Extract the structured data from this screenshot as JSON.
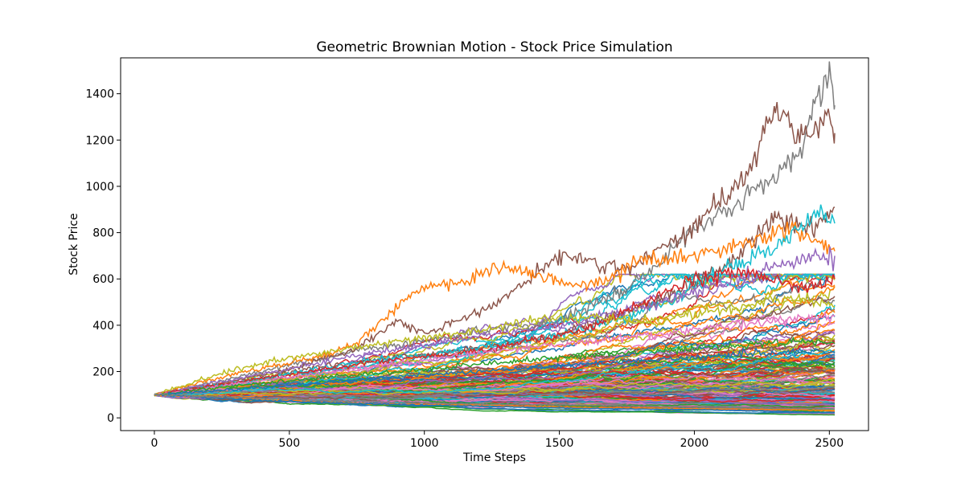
{
  "chart_data": {
    "type": "line",
    "title": "Geometric Brownian Motion - Stock Price Simulation",
    "xlabel": "Time Steps",
    "ylabel": "Stock Price",
    "xlim": [
      -125,
      2645
    ],
    "ylim": [
      -55,
      1555
    ],
    "xticks": [
      0,
      500,
      1000,
      1500,
      2000,
      2500
    ],
    "yticks": [
      0,
      200,
      400,
      600,
      800,
      1000,
      1200,
      1400
    ],
    "grid": false,
    "legend": "none",
    "n_steps": 2520,
    "initial_price": 100,
    "colors": [
      "#1f77b4",
      "#ff7f0e",
      "#2ca02c",
      "#d62728",
      "#9467bd",
      "#8c564b",
      "#e377c2",
      "#7f7f7f",
      "#bcbd22",
      "#17becf"
    ],
    "series": [
      {
        "color": "#7f7f7f",
        "x": [
          0,
          250,
          500,
          750,
          1000,
          1250,
          1500,
          1750,
          2000,
          2250,
          2380,
          2450,
          2500,
          2520
        ],
        "y": [
          100,
          160,
          230,
          290,
          330,
          380,
          420,
          560,
          800,
          1000,
          1120,
          1380,
          1470,
          1350
        ]
      },
      {
        "color": "#8c564b",
        "x": [
          0,
          250,
          500,
          750,
          900,
          1000,
          1250,
          1500,
          1750,
          2000,
          2200,
          2300,
          2400,
          2500,
          2520
        ],
        "y": [
          100,
          150,
          210,
          300,
          420,
          360,
          480,
          700,
          640,
          820,
          1050,
          1340,
          1220,
          1280,
          1230
        ]
      },
      {
        "color": "#8c564b",
        "x": [
          0,
          300,
          600,
          900,
          1200,
          1500,
          1800,
          2100,
          2300,
          2450,
          2520
        ],
        "y": [
          100,
          150,
          220,
          260,
          300,
          360,
          480,
          640,
          860,
          820,
          910
        ]
      },
      {
        "color": "#ff7f0e",
        "x": [
          0,
          300,
          600,
          750,
          900,
          1000,
          1150,
          1300,
          1400,
          1600,
          1800,
          2000,
          2200,
          2350,
          2450,
          2520
        ],
        "y": [
          100,
          190,
          260,
          320,
          480,
          560,
          590,
          660,
          620,
          560,
          680,
          700,
          760,
          820,
          760,
          720
        ]
      },
      {
        "color": "#17becf",
        "x": [
          0,
          400,
          800,
          1200,
          1600,
          1900,
          2100,
          2300,
          2450,
          2520
        ],
        "y": [
          100,
          170,
          250,
          300,
          380,
          500,
          640,
          730,
          880,
          840
        ]
      },
      {
        "color": "#9467bd",
        "x": [
          0,
          400,
          800,
          1200,
          1600,
          2000,
          2200,
          2400,
          2520
        ],
        "y": [
          100,
          190,
          280,
          350,
          420,
          540,
          620,
          690,
          700
        ]
      },
      {
        "color": "#d62728",
        "x": [
          0,
          400,
          800,
          1200,
          1600,
          2000,
          2200,
          2400,
          2520
        ],
        "y": [
          100,
          170,
          240,
          290,
          380,
          600,
          630,
          560,
          600
        ]
      },
      {
        "color": "#bcbd22",
        "x": [
          0,
          300,
          600,
          900,
          1200,
          1500,
          1800,
          2100,
          2400,
          2520
        ],
        "y": [
          100,
          210,
          280,
          330,
          380,
          440,
          420,
          470,
          520,
          480
        ]
      },
      {
        "color": "#e377c2",
        "x": [
          0,
          400,
          800,
          1200,
          1600,
          2000,
          2400,
          2520
        ],
        "y": [
          100,
          160,
          220,
          280,
          330,
          380,
          430,
          440
        ]
      },
      {
        "color": "#2ca02c",
        "x": [
          0,
          400,
          800,
          1200,
          1600,
          2000,
          2400,
          2520
        ],
        "y": [
          100,
          150,
          190,
          230,
          270,
          300,
          330,
          320
        ]
      },
      {
        "color": "#1f77b4",
        "x": [
          0,
          400,
          800,
          1200,
          1600,
          2000,
          2400,
          2520
        ],
        "y": [
          100,
          130,
          170,
          200,
          230,
          260,
          290,
          280
        ]
      },
      {
        "color": "#ff7f0e",
        "x": [
          0,
          400,
          800,
          1200,
          1600,
          2000,
          2400,
          2520
        ],
        "y": [
          100,
          80,
          60,
          55,
          45,
          40,
          35,
          30
        ]
      },
      {
        "color": "#1f77b4",
        "x": [
          0,
          400,
          800,
          1200,
          1600,
          2000,
          2400,
          2520
        ],
        "y": [
          100,
          75,
          60,
          50,
          40,
          35,
          25,
          22
        ]
      },
      {
        "color": "#7f7f7f",
        "x": [
          0,
          400,
          800,
          1200,
          1600,
          2000,
          2400,
          2520
        ],
        "y": [
          100,
          85,
          70,
          60,
          55,
          45,
          40,
          38
        ]
      }
    ]
  }
}
